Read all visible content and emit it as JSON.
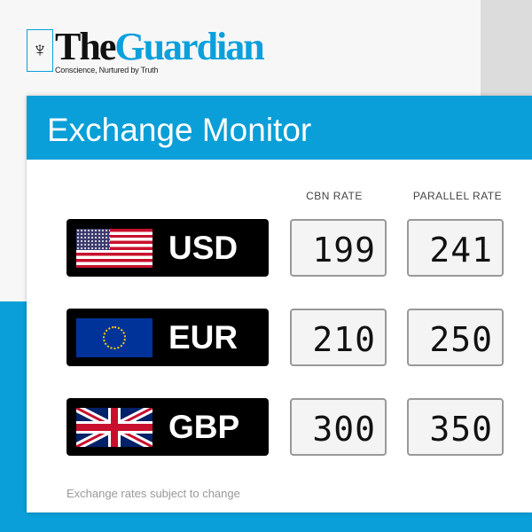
{
  "brand": {
    "the": "The",
    "guardian": "Guardian",
    "tagline": "Conscience, Nurtured by Truth",
    "accent": "#0a9fd8"
  },
  "title": "Exchange Monitor",
  "columns": {
    "cbn": "CBN RATE",
    "parallel": "PARALLEL RATE"
  },
  "rows": [
    {
      "code": "USD",
      "flag": "us-flag-icon",
      "cbn": "199",
      "parallel": "241"
    },
    {
      "code": "EUR",
      "flag": "eu-flag-icon",
      "cbn": "210",
      "parallel": "250"
    },
    {
      "code": "GBP",
      "flag": "uk-flag-icon",
      "cbn": "300",
      "parallel": "350"
    }
  ],
  "note": "Exchange rates subject to change"
}
